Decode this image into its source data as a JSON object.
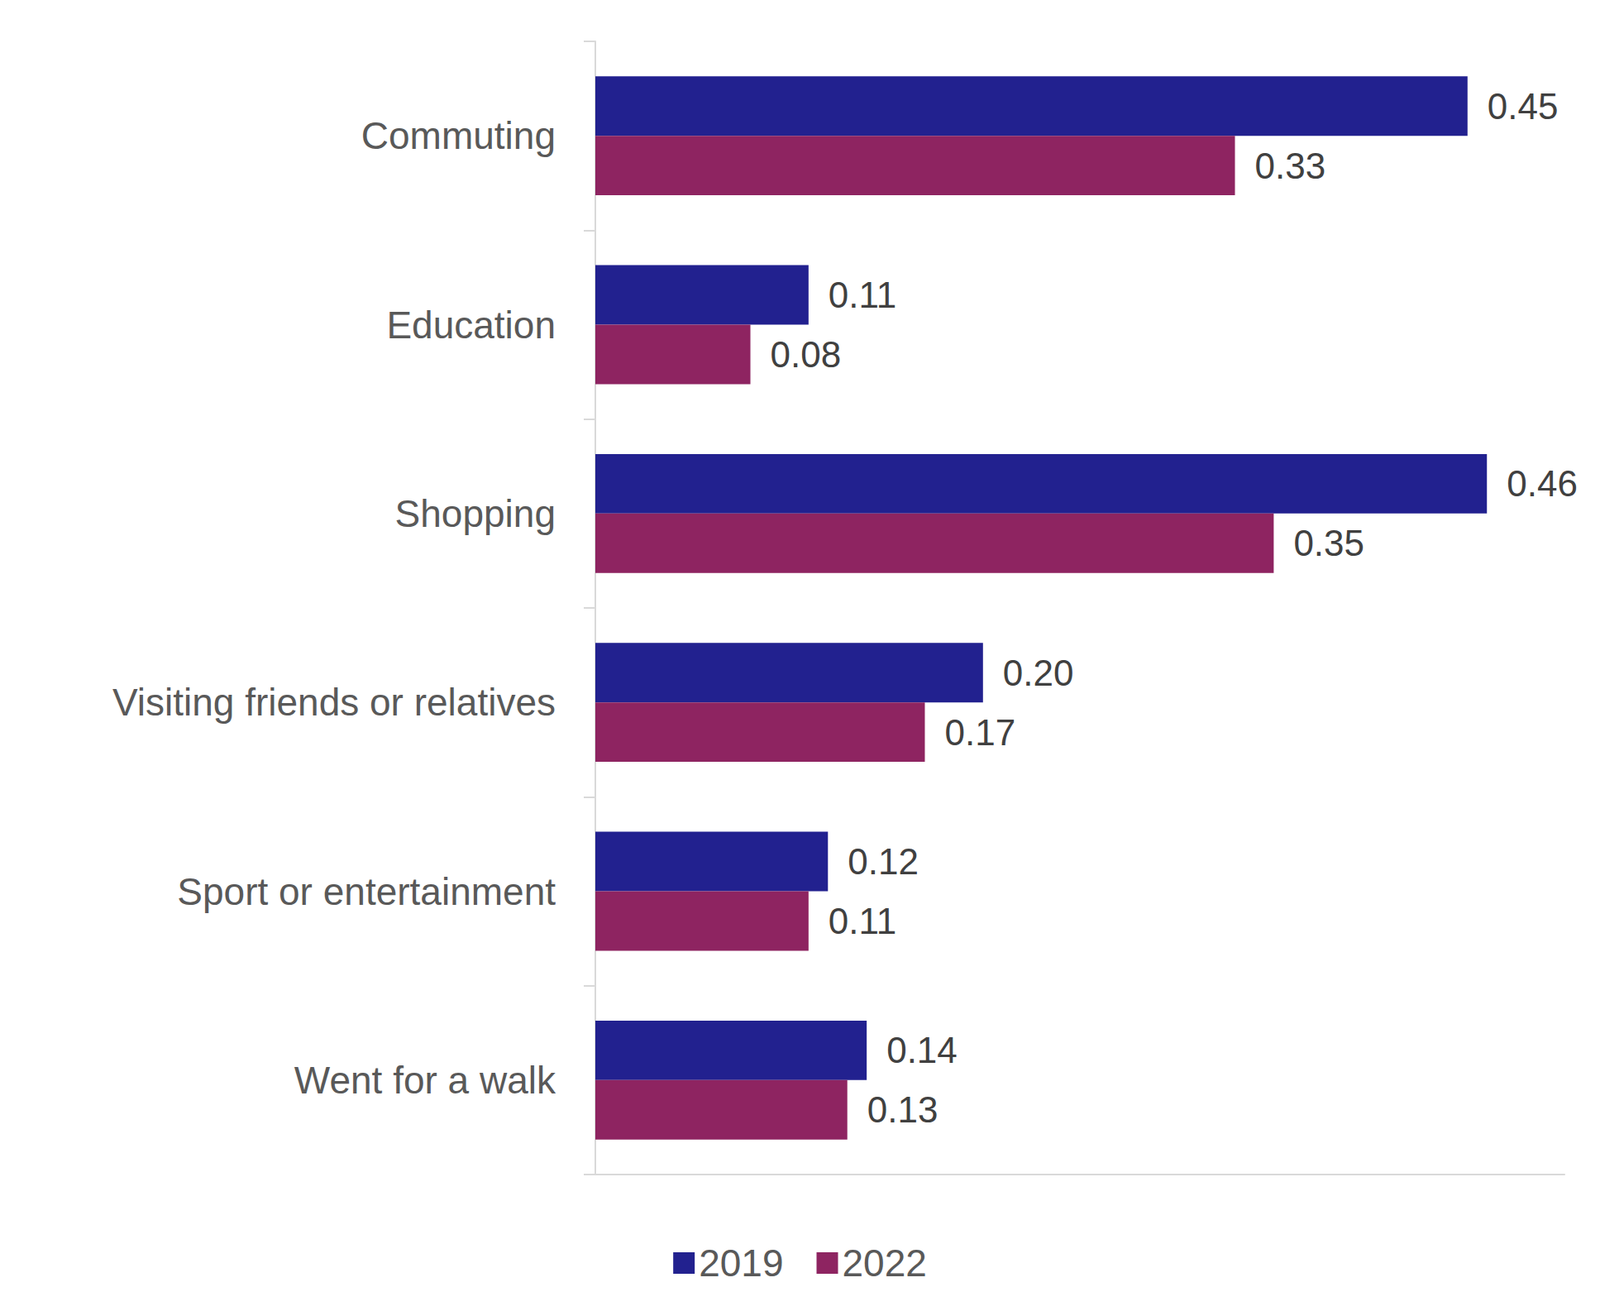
{
  "chart_data": {
    "type": "bar",
    "orientation": "horizontal",
    "categories": [
      "Commuting",
      "Education",
      "Shopping",
      "Visiting friends or relatives",
      "Sport or entertainment",
      "Went for a walk"
    ],
    "series": [
      {
        "name": "2019",
        "color": "#22218f",
        "values": [
          0.45,
          0.11,
          0.46,
          0.2,
          0.12,
          0.14
        ],
        "value_labels": [
          "0.45",
          "0.11",
          "0.46",
          "0.20",
          "0.12",
          "0.14"
        ]
      },
      {
        "name": "2022",
        "color": "#8e2461",
        "values": [
          0.33,
          0.08,
          0.35,
          0.17,
          0.11,
          0.13
        ],
        "value_labels": [
          "0.33",
          "0.08",
          "0.35",
          "0.17",
          "0.11",
          "0.13"
        ]
      }
    ],
    "xlim": [
      0,
      0.5
    ],
    "data_labels": true,
    "tick_labels": "y",
    "grid": false,
    "legend": "bottom"
  }
}
